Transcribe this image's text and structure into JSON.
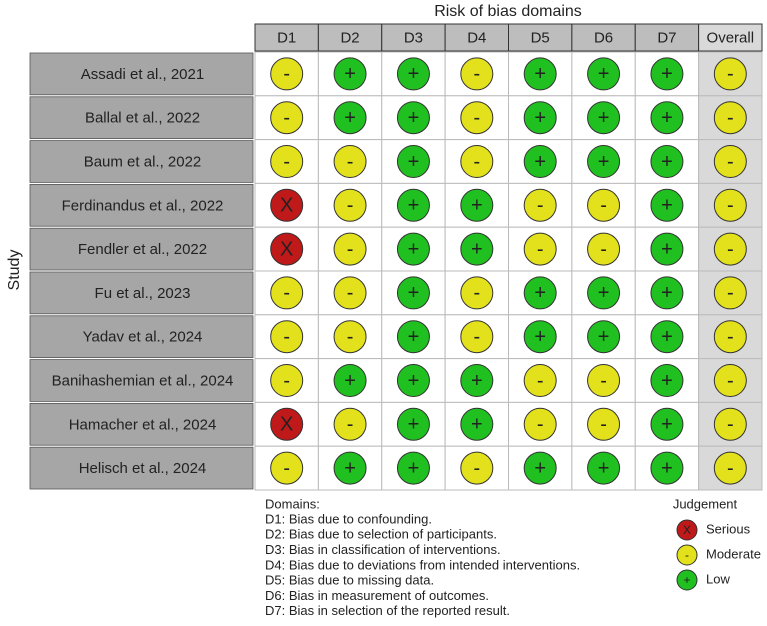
{
  "title": "Risk of bias domains",
  "row_axis_label": "Study",
  "columns": [
    "D1",
    "D2",
    "D3",
    "D4",
    "D5",
    "D6",
    "D7",
    "Overall"
  ],
  "rows": [
    {
      "study": "Assadi et al., 2021",
      "judgements": [
        "-",
        "+",
        "+",
        "-",
        "+",
        "+",
        "+",
        "-"
      ]
    },
    {
      "study": "Ballal et al., 2022",
      "judgements": [
        "-",
        "+",
        "+",
        "-",
        "+",
        "+",
        "+",
        "-"
      ]
    },
    {
      "study": "Baum et al., 2022",
      "judgements": [
        "-",
        "-",
        "+",
        "-",
        "+",
        "+",
        "+",
        "-"
      ]
    },
    {
      "study": "Ferdinandus et al., 2022",
      "judgements": [
        "X",
        "-",
        "+",
        "+",
        "-",
        "-",
        "+",
        "-"
      ]
    },
    {
      "study": "Fendler et al., 2022",
      "judgements": [
        "X",
        "-",
        "+",
        "+",
        "-",
        "-",
        "+",
        "-"
      ]
    },
    {
      "study": "Fu et al., 2023",
      "judgements": [
        "-",
        "-",
        "+",
        "-",
        "+",
        "+",
        "+",
        "-"
      ]
    },
    {
      "study": "Yadav et al., 2024",
      "judgements": [
        "-",
        "-",
        "+",
        "-",
        "+",
        "+",
        "+",
        "-"
      ]
    },
    {
      "study": "Banihashemian et al., 2024",
      "judgements": [
        "-",
        "+",
        "+",
        "+",
        "-",
        "-",
        "+",
        "-"
      ]
    },
    {
      "study": "Hamacher et al., 2024",
      "judgements": [
        "X",
        "-",
        "+",
        "+",
        "-",
        "-",
        "+",
        "-"
      ]
    },
    {
      "study": "Helisch et al., 2024",
      "judgements": [
        "-",
        "+",
        "+",
        "-",
        "+",
        "+",
        "+",
        "-"
      ]
    }
  ],
  "domains": {
    "heading": "Domains:",
    "items": [
      "D1: Bias due to confounding.",
      "D2: Bias due to selection of participants.",
      "D3: Bias in classification of interventions.",
      "D4: Bias due to deviations from intended interventions.",
      "D5: Bias due to missing data.",
      "D6: Bias in measurement of outcomes.",
      "D7: Bias in selection of the reported result."
    ]
  },
  "legend": {
    "title": "Judgement",
    "items": [
      {
        "symbol": "X",
        "label": "Serious",
        "color": "#c0191a"
      },
      {
        "symbol": "-",
        "label": "Moderate",
        "color": "#e3e01c"
      },
      {
        "symbol": "+",
        "label": "Low",
        "color": "#20c020"
      }
    ]
  }
}
